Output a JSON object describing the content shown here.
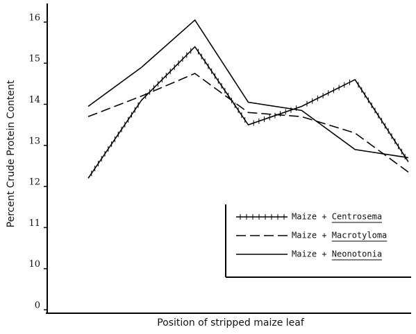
{
  "chart_data": {
    "type": "line",
    "y_label": "Percent Crude Protein Content",
    "x_label": "Position of stripped maize leaf",
    "categories": [
      null,
      null,
      null,
      null,
      null,
      null,
      null
    ],
    "series": [
      {
        "name": "Maize + Centrosema",
        "color": "#000000",
        "style": "ticked",
        "values": [
          12.2,
          14.1,
          15.4,
          13.5,
          13.95,
          14.6,
          12.6
        ]
      },
      {
        "name": "Maize + Macrotyloma",
        "color": "#000000",
        "style": "dashed",
        "values": [
          13.7,
          14.2,
          14.75,
          13.8,
          13.7,
          13.3,
          12.35
        ]
      },
      {
        "name": "Maize + Neonotonia",
        "color": "#000000",
        "style": "solid",
        "values": [
          13.95,
          14.9,
          16.05,
          14.05,
          13.85,
          12.9,
          12.7
        ]
      }
    ],
    "ylim": [
      0,
      16.45
    ],
    "axis_break": [
      0,
      10
    ],
    "yticks": [
      0,
      10,
      11,
      12,
      13,
      14,
      15,
      16
    ],
    "legend": "lower right"
  }
}
